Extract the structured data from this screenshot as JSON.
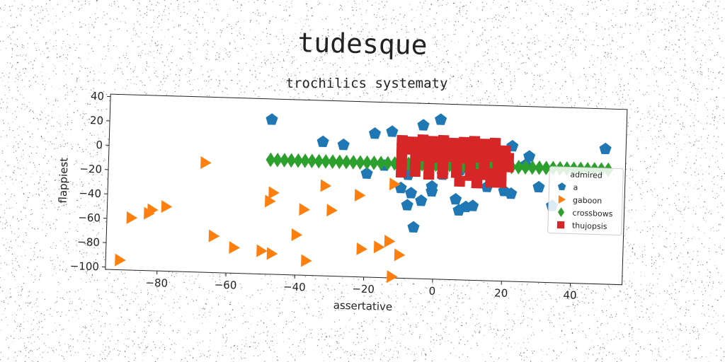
{
  "chart_data": {
    "type": "scatter",
    "suptitle": "tudesque",
    "title": "trochilics systematy",
    "xlabel": "assertative",
    "ylabel": "flappiest",
    "xlim": [
      -95,
      55
    ],
    "ylim": [
      -102,
      42
    ],
    "xticks": [
      -80,
      -60,
      -40,
      -20,
      0,
      20,
      40
    ],
    "yticks": [
      -100,
      -80,
      -60,
      -40,
      -20,
      0,
      20,
      40
    ],
    "legend": {
      "title": "admired",
      "position": "center-right"
    },
    "series": [
      {
        "name": "a",
        "color": "#1f77b4",
        "marker": "pentagon",
        "points": [
          [
            -48,
            25
          ],
          [
            -33,
            8
          ],
          [
            -27,
            6
          ],
          [
            -18,
            16
          ],
          [
            -13,
            18
          ],
          [
            -4,
            24
          ],
          [
            1,
            29
          ],
          [
            -20,
            -17
          ],
          [
            -15,
            -10
          ],
          [
            -8,
            -17
          ],
          [
            -10,
            -28
          ],
          [
            -7,
            -32
          ],
          [
            -4,
            -38
          ],
          [
            -8,
            -42
          ],
          [
            -1,
            -26
          ],
          [
            -1,
            -30
          ],
          [
            6,
            -36
          ],
          [
            7,
            -45
          ],
          [
            9,
            -42
          ],
          [
            11,
            -41
          ],
          [
            -6,
            -60
          ],
          [
            -3,
            6
          ],
          [
            15,
            -25
          ],
          [
            20,
            -28
          ],
          [
            22,
            -30
          ],
          [
            22,
            9
          ],
          [
            27,
            1
          ],
          [
            26,
            -6
          ],
          [
            30,
            -24
          ],
          [
            34,
            -39
          ],
          [
            49,
            9
          ],
          [
            4,
            -6
          ],
          [
            7,
            -12
          ],
          [
            2,
            -16
          ],
          [
            12,
            4
          ]
        ]
      },
      {
        "name": "gaboon",
        "color": "#ff7f0e",
        "marker": "triangle-right",
        "points": [
          [
            -67,
            -12
          ],
          [
            -47,
            -35
          ],
          [
            -48,
            -42
          ],
          [
            -38,
            -48
          ],
          [
            -32,
            -28
          ],
          [
            -30,
            -48
          ],
          [
            -22,
            -35
          ],
          [
            -12,
            -25
          ],
          [
            -40,
            -69
          ],
          [
            -78,
            -49
          ],
          [
            -82,
            -52
          ],
          [
            -83,
            -55
          ],
          [
            -88,
            -59
          ],
          [
            -64,
            -72
          ],
          [
            -58,
            -81
          ],
          [
            -50,
            -83
          ],
          [
            -47,
            -85
          ],
          [
            -37,
            -90
          ],
          [
            -21,
            -79
          ],
          [
            -16,
            -77
          ],
          [
            -13,
            -72
          ],
          [
            -10,
            -83
          ],
          [
            -12,
            -101
          ],
          [
            -91,
            -94
          ]
        ]
      },
      {
        "name": "crossbows",
        "color": "#2ca02c",
        "marker": "diamond",
        "points": [
          [
            -48,
            -8
          ],
          [
            -46,
            -8
          ],
          [
            -44,
            -8
          ],
          [
            -42,
            -8
          ],
          [
            -40,
            -8
          ],
          [
            -38,
            -8
          ],
          [
            -36,
            -8
          ],
          [
            -34,
            -8
          ],
          [
            -32,
            -8
          ],
          [
            -30,
            -8
          ],
          [
            -28,
            -8
          ],
          [
            -26,
            -8
          ],
          [
            -24,
            -8
          ],
          [
            -22,
            -8
          ],
          [
            -20,
            -8
          ],
          [
            -18,
            -8
          ],
          [
            -16,
            -8
          ],
          [
            -14,
            -8
          ],
          [
            -12,
            -8
          ],
          [
            -10,
            -8
          ],
          [
            -8,
            -8
          ],
          [
            -6,
            -8
          ],
          [
            -4,
            -8
          ],
          [
            -2,
            -8
          ],
          [
            0,
            -8
          ],
          [
            2,
            -8
          ],
          [
            4,
            -8
          ],
          [
            6,
            -8
          ],
          [
            8,
            -8
          ],
          [
            10,
            -8
          ],
          [
            12,
            -8
          ],
          [
            14,
            -8
          ],
          [
            16,
            -8
          ],
          [
            18,
            -8
          ],
          [
            20,
            -8
          ],
          [
            22,
            -8
          ],
          [
            24,
            -8
          ],
          [
            26,
            -8
          ],
          [
            28,
            -8
          ],
          [
            30,
            -8
          ],
          [
            32,
            -8
          ],
          [
            34,
            -8
          ],
          [
            36,
            -8
          ],
          [
            38,
            -8
          ],
          [
            40,
            -8
          ],
          [
            42,
            -8
          ],
          [
            44,
            -8
          ],
          [
            46,
            -8
          ],
          [
            48,
            -8
          ],
          [
            50,
            -8
          ]
        ]
      },
      {
        "name": "thujopsis",
        "color": "#d62728",
        "marker": "square",
        "points": [
          [
            -10,
            11
          ],
          [
            -7,
            10
          ],
          [
            -4,
            12
          ],
          [
            -1,
            11
          ],
          [
            2,
            12
          ],
          [
            5,
            10
          ],
          [
            8,
            11
          ],
          [
            11,
            12
          ],
          [
            14,
            10
          ],
          [
            17,
            11
          ],
          [
            -10,
            6
          ],
          [
            -7,
            4
          ],
          [
            -4,
            6
          ],
          [
            -1,
            5
          ],
          [
            2,
            6
          ],
          [
            5,
            4
          ],
          [
            8,
            6
          ],
          [
            11,
            5
          ],
          [
            14,
            6
          ],
          [
            17,
            4
          ],
          [
            20,
            5
          ],
          [
            -10,
            -1
          ],
          [
            -6,
            -2
          ],
          [
            -3,
            -1
          ],
          [
            0,
            -2
          ],
          [
            3,
            -1
          ],
          [
            6,
            0
          ],
          [
            9,
            -2
          ],
          [
            12,
            -1
          ],
          [
            15,
            0
          ],
          [
            18,
            -2
          ],
          [
            21,
            -1
          ],
          [
            -10,
            -8
          ],
          [
            -6,
            -9
          ],
          [
            -2,
            -8
          ],
          [
            2,
            -9
          ],
          [
            6,
            -8
          ],
          [
            10,
            -9
          ],
          [
            14,
            -8
          ],
          [
            18,
            -9
          ],
          [
            21,
            -8
          ],
          [
            -10,
            -15
          ],
          [
            -6,
            -14
          ],
          [
            -2,
            -16
          ],
          [
            2,
            -15
          ],
          [
            6,
            -14
          ],
          [
            10,
            -16
          ],
          [
            13,
            -15
          ],
          [
            16,
            -14
          ],
          [
            19,
            -16
          ],
          [
            7,
            -21
          ],
          [
            12,
            -22
          ],
          [
            16,
            -21
          ],
          [
            19,
            -21
          ]
        ]
      }
    ]
  }
}
